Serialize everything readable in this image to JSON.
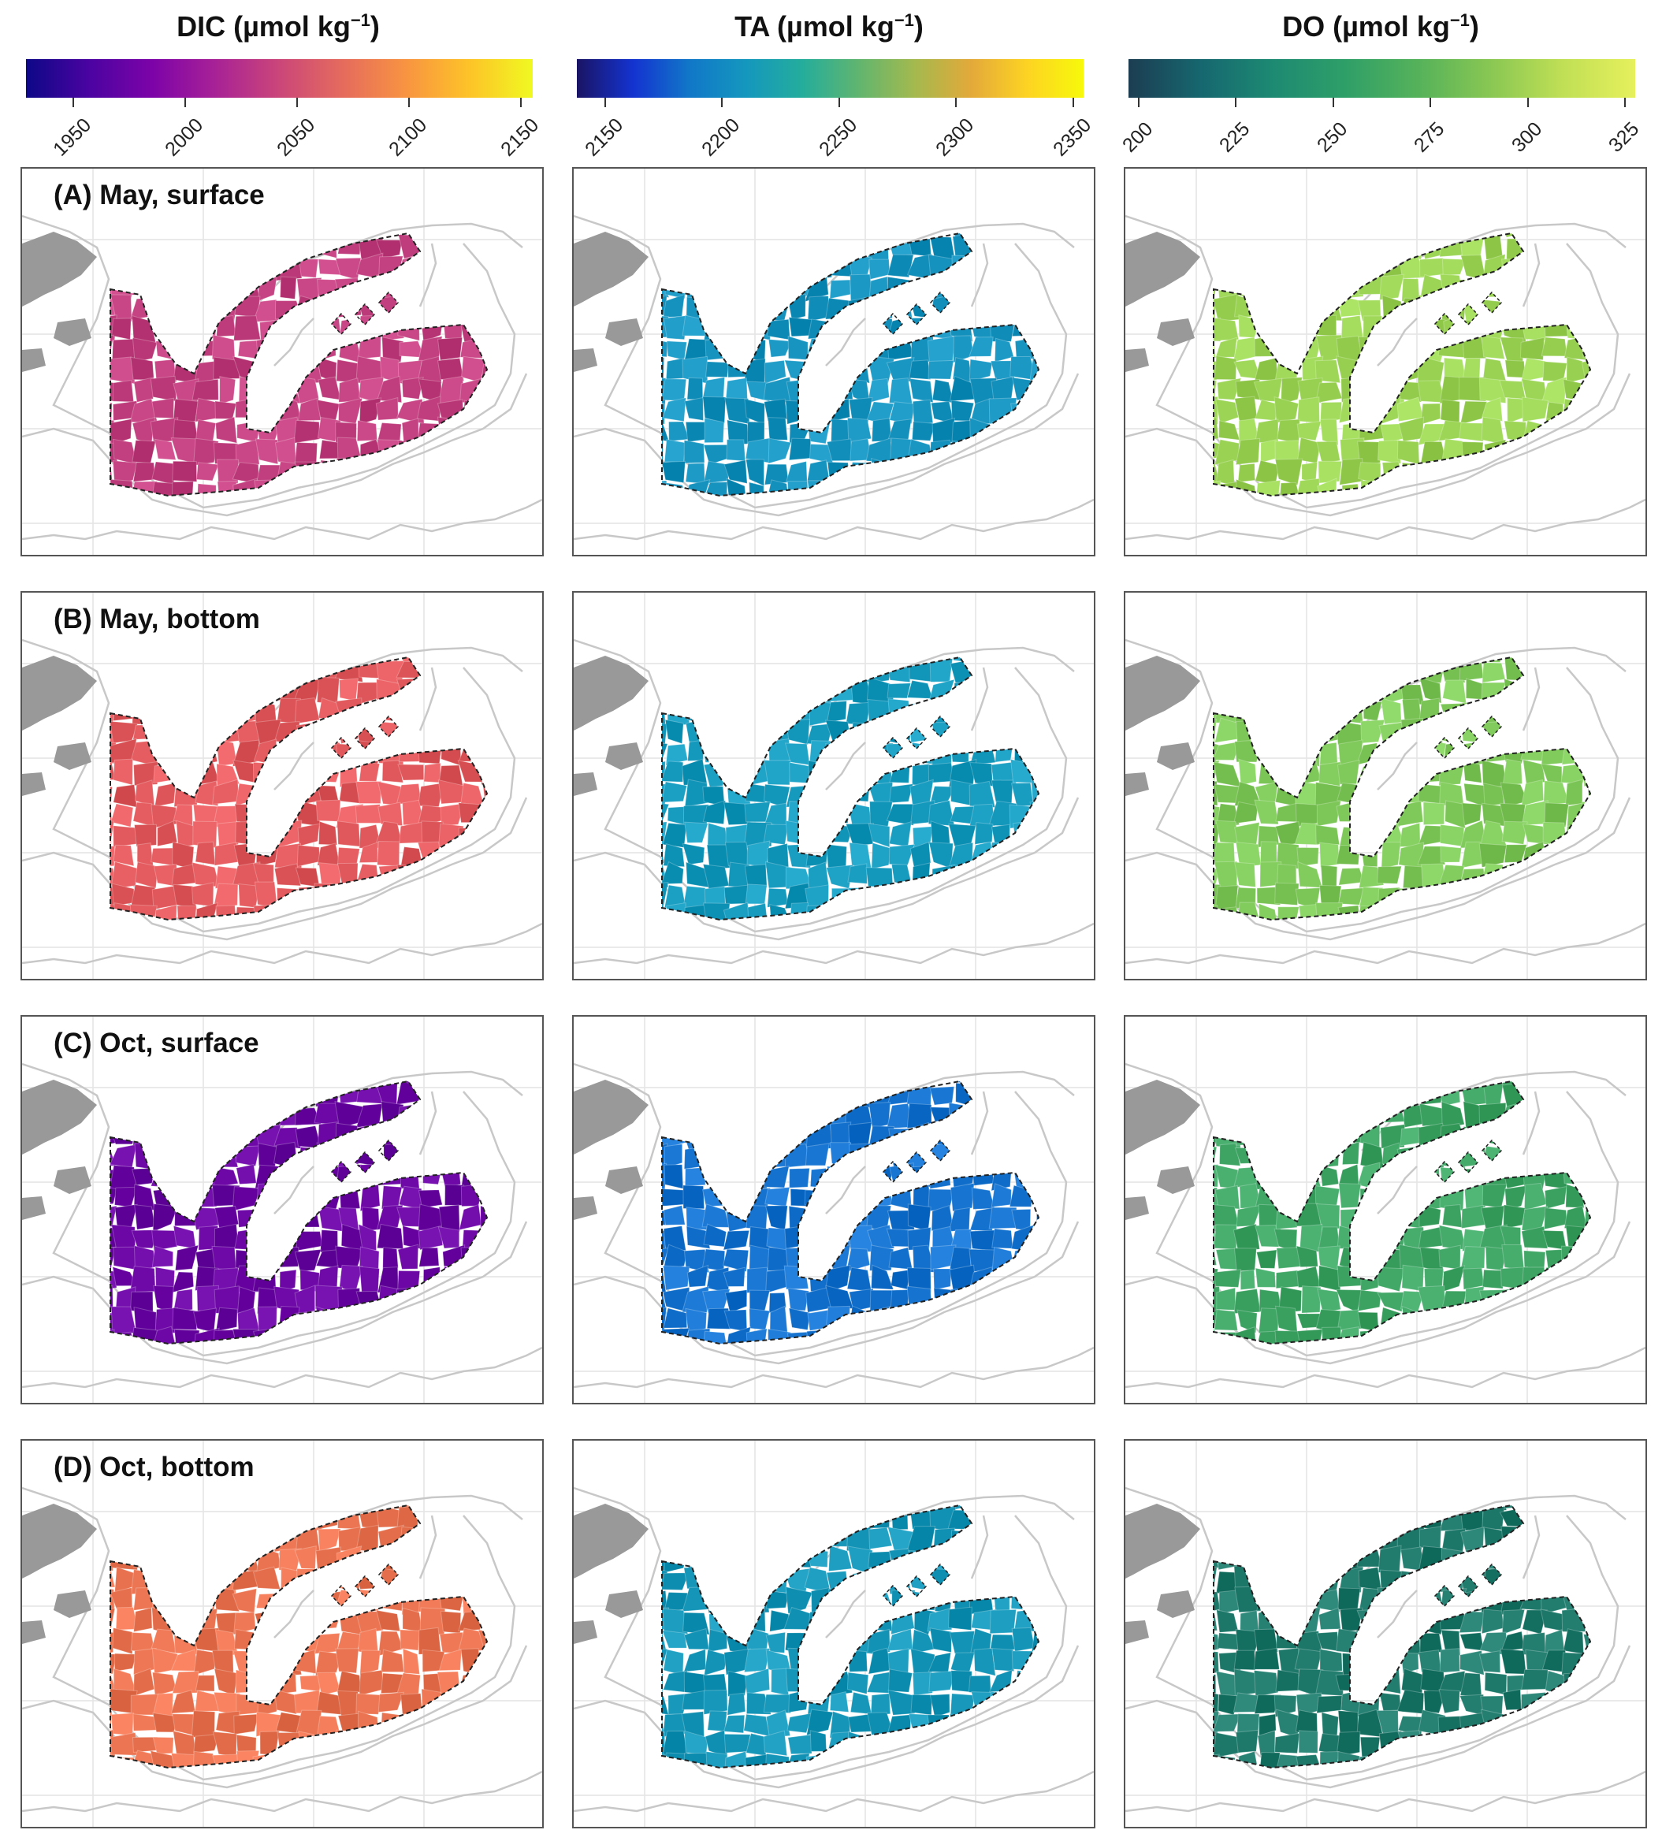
{
  "colorbars": [
    {
      "id": "dic",
      "title_main": "DIC (µmol kg",
      "title_sup": "−1",
      "title_close": ")",
      "ticks": [
        "1950",
        "2000",
        "2050",
        "2100",
        "2150"
      ],
      "palette": [
        "#0d0887",
        "#4b03a1",
        "#7d03a8",
        "#a82296",
        "#cb4679",
        "#e56b5d",
        "#f89441",
        "#fdc328",
        "#f0f921"
      ]
    },
    {
      "id": "ta",
      "title_main": "TA (µmol kg",
      "title_sup": "−1",
      "title_close": ")",
      "ticks": [
        "2150",
        "2200",
        "2250",
        "2300",
        "2350"
      ],
      "palette": [
        "#1a1464",
        "#1433d0",
        "#1177c8",
        "#1497be",
        "#24ad9c",
        "#60b56f",
        "#a4b94e",
        "#e3a93a",
        "#fdd323",
        "#f7f90a"
      ]
    },
    {
      "id": "do",
      "title_main": "DO (µmol kg",
      "title_sup": "−1",
      "title_close": ")",
      "ticks": [
        "200",
        "225",
        "250",
        "275",
        "300",
        "325"
      ],
      "palette": [
        "#1c3d52",
        "#16676f",
        "#1d8a72",
        "#2f9f68",
        "#55b25a",
        "#89c753",
        "#c0df55",
        "#e6f05c"
      ]
    }
  ],
  "rows": [
    {
      "label": "(A) May, surface",
      "fills": {
        "dic": "#c2407f",
        "ta": "#1592be",
        "do": "#9bd455"
      }
    },
    {
      "label": "(B) May, bottom",
      "fills": {
        "dic": "#e25a5d",
        "ta": "#1599bd",
        "do": "#7fc95a"
      }
    },
    {
      "label": "(C) Oct, surface",
      "fills": {
        "dic": "#6a04a3",
        "ta": "#1573cf",
        "do": "#3fa565"
      }
    },
    {
      "label": "(D) Oct, bottom",
      "fills": {
        "dic": "#ea7451",
        "ta": "#1696b8",
        "do": "#1f7a6c"
      }
    }
  ],
  "colors": {
    "land": "#999999",
    "isobath": "#c8c8c8",
    "grid": "#e4e4e4",
    "outline": "#222222"
  }
}
